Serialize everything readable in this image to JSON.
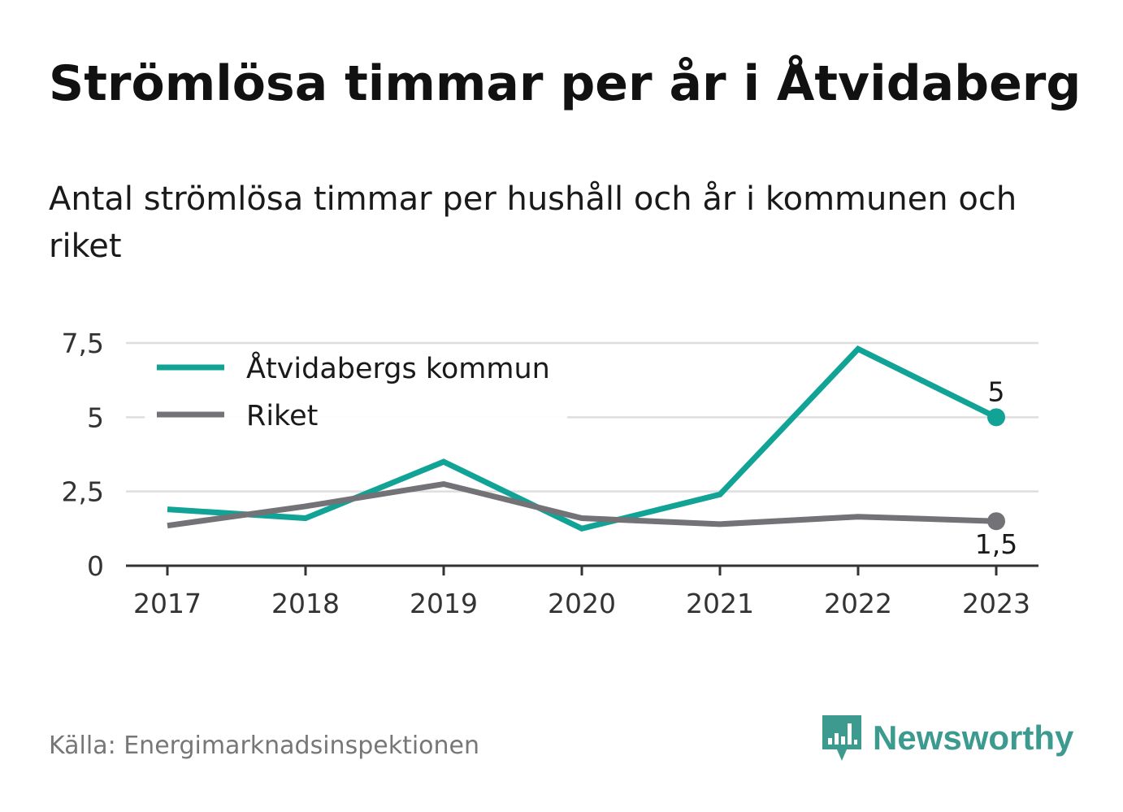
{
  "title": "Strömlösa timmar per år i Åtvidaberg",
  "subtitle": "Antal strömlösa timmar per hushåll och år i kommunen och riket",
  "source": "Källa: Energimarknadsinspektionen",
  "brand": {
    "name": "Newsworthy",
    "icon": "newsworthy-logo-icon",
    "color": "#3d9a8f"
  },
  "chart_data": {
    "type": "line",
    "x": [
      "2017",
      "2018",
      "2019",
      "2020",
      "2021",
      "2022",
      "2023"
    ],
    "series": [
      {
        "name": "Åtvidabergs kommun",
        "color": "#11a396",
        "values": [
          1.9,
          1.6,
          3.5,
          1.25,
          2.4,
          7.3,
          5
        ],
        "end_label": "5"
      },
      {
        "name": "Riket",
        "color": "#737377",
        "values": [
          1.35,
          2.0,
          2.75,
          1.6,
          1.4,
          1.65,
          1.5
        ],
        "end_label": "1,5"
      }
    ],
    "y_ticks": [
      {
        "value": 0,
        "label": "0"
      },
      {
        "value": 2.5,
        "label": "2,5"
      },
      {
        "value": 5,
        "label": "5"
      },
      {
        "value": 7.5,
        "label": "7,5"
      }
    ],
    "ylim": [
      0,
      7.5
    ],
    "grid": true,
    "legend": "top-left"
  }
}
